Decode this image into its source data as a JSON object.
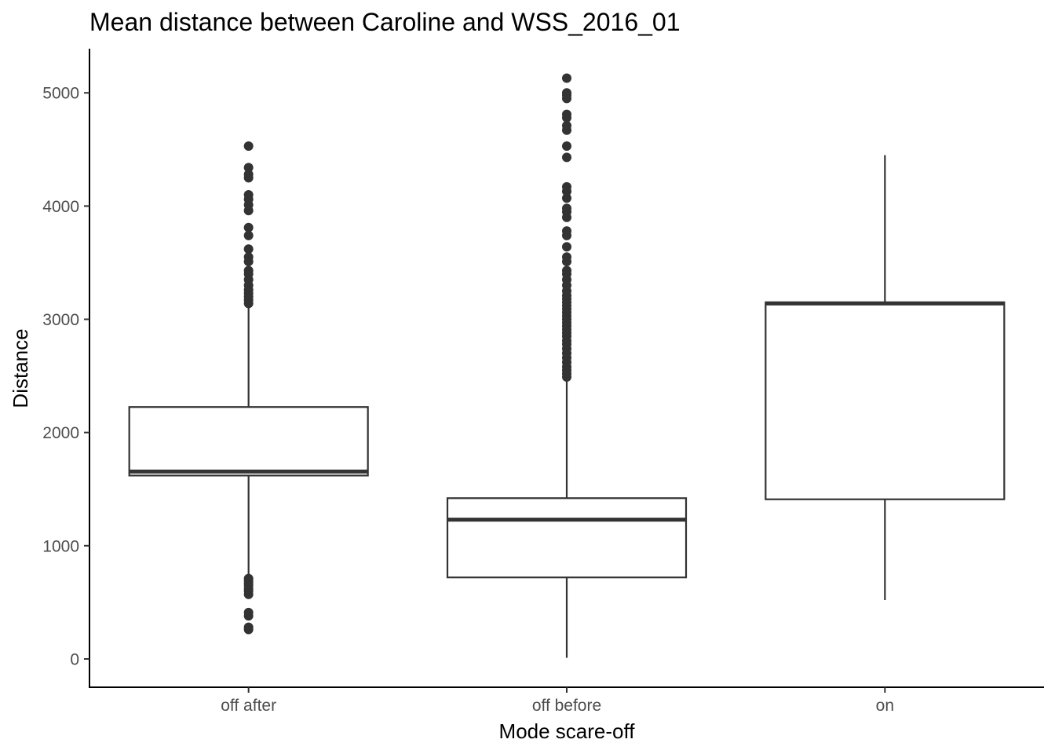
{
  "chart_data": {
    "type": "boxplot",
    "title": "Mean distance between Caroline and WSS_2016_01",
    "xlabel": "Mode scare-off",
    "ylabel": "Distance",
    "ylim": [
      -250,
      5390
    ],
    "yticks": [
      0,
      1000,
      2000,
      3000,
      4000,
      5000
    ],
    "ytick_labels": [
      "0",
      "1000",
      "2000",
      "3000",
      "4000",
      "5000"
    ],
    "grid": false,
    "categories": [
      "off after",
      "off before",
      "on"
    ],
    "boxes": [
      {
        "category": "off after",
        "whisker_low": 720,
        "q1": 1620,
        "median": 1655,
        "q3": 2225,
        "whisker_high": 3120,
        "outliers": [
          260,
          280,
          380,
          410,
          570,
          600,
          620,
          650,
          670,
          690,
          710,
          3140,
          3170,
          3200,
          3230,
          3260,
          3300,
          3350,
          3400,
          3430,
          3510,
          3550,
          3620,
          3740,
          3810,
          3960,
          4010,
          4060,
          4100,
          4250,
          4280,
          4340,
          4530
        ]
      },
      {
        "category": "off before",
        "whisker_low": 10,
        "q1": 720,
        "median": 1230,
        "q3": 1420,
        "whisker_high": 2470,
        "outliers": [
          2490,
          2520,
          2550,
          2580,
          2620,
          2660,
          2700,
          2740,
          2780,
          2810,
          2850,
          2880,
          2910,
          2940,
          2970,
          3000,
          3030,
          3060,
          3090,
          3120,
          3150,
          3180,
          3210,
          3250,
          3300,
          3350,
          3400,
          3430,
          3510,
          3550,
          3640,
          3740,
          3780,
          3900,
          3950,
          3980,
          4070,
          4130,
          4170,
          4430,
          4530,
          4670,
          4710,
          4780,
          4810,
          4950,
          4980,
          5000,
          5130
        ]
      },
      {
        "category": "on",
        "whisker_low": 520,
        "q1": 1410,
        "median": 3140,
        "q3": 3150,
        "whisker_high": 4450,
        "outliers": []
      }
    ]
  }
}
